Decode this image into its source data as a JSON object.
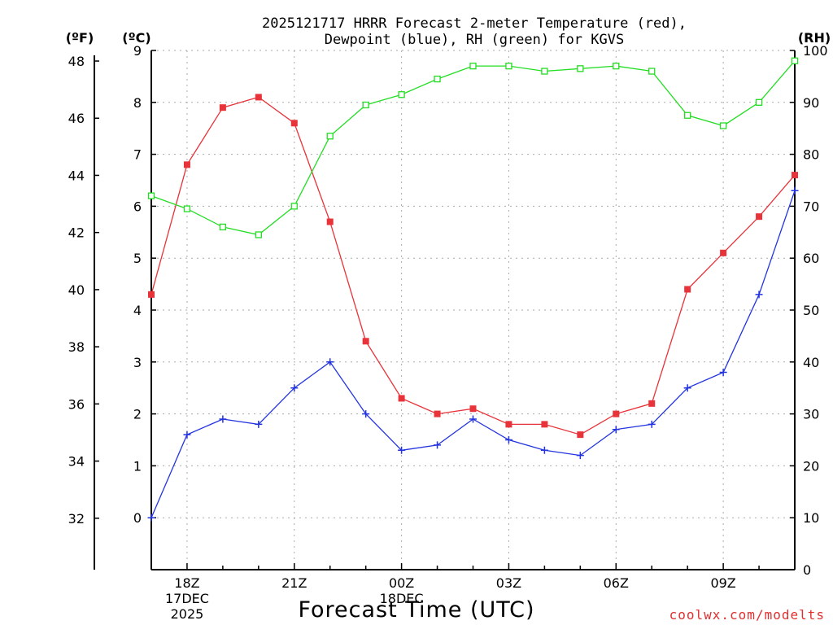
{
  "chart_data": {
    "type": "line",
    "title_lines": [
      "2025121717 HRRR Forecast 2-meter Temperature (red),",
      "Dewpoint (blue), RH (green) for KGVS"
    ],
    "xlabel": "Forecast Time (UTC)",
    "credit": "coolwx.com/modelts",
    "units": {
      "fahrenheit": "(ºF)",
      "celsius": "(ºC)",
      "rh": "(RH)"
    },
    "x_hours": [
      0,
      1,
      2,
      3,
      4,
      5,
      6,
      7,
      8,
      9,
      10,
      11,
      12,
      13,
      14,
      15,
      16,
      17,
      18
    ],
    "x_tick_hours": [
      1,
      4,
      7,
      10,
      13,
      16
    ],
    "x_tick_labels": [
      [
        "18Z",
        "17DEC",
        "2025"
      ],
      [
        "21Z"
      ],
      [
        "00Z",
        "18DEC"
      ],
      [
        "03Z"
      ],
      [
        "06Z"
      ],
      [
        "09Z"
      ]
    ],
    "y_celsius": {
      "ylim": [
        -1,
        9
      ],
      "ticks": [
        0,
        1,
        2,
        3,
        4,
        5,
        6,
        7,
        8,
        9
      ]
    },
    "y_fahrenheit": {
      "ylim": [
        30.2,
        48.2
      ],
      "ticks": [
        32,
        34,
        36,
        38,
        40,
        42,
        44,
        46,
        48
      ]
    },
    "y_rh": {
      "ylim": [
        0,
        100
      ],
      "ticks": [
        0,
        10,
        20,
        30,
        40,
        50,
        60,
        70,
        80,
        90,
        100
      ]
    },
    "series": [
      {
        "name": "Temperature",
        "axis": "celsius",
        "color": "#e8333a",
        "marker": "square",
        "values": [
          4.3,
          6.8,
          7.9,
          8.1,
          7.6,
          5.7,
          3.4,
          2.3,
          2.0,
          2.1,
          1.8,
          1.8,
          1.6,
          2.0,
          2.2,
          4.4,
          5.1,
          5.8,
          6.6
        ]
      },
      {
        "name": "Dewpoint",
        "axis": "celsius",
        "color": "#2233e0",
        "marker": "plus",
        "values": [
          0.0,
          1.6,
          1.9,
          1.8,
          2.5,
          3.0,
          2.0,
          1.3,
          1.4,
          1.9,
          1.5,
          1.3,
          1.2,
          1.7,
          1.8,
          2.5,
          2.8,
          4.3,
          6.3
        ]
      },
      {
        "name": "RH",
        "axis": "rh",
        "color": "#22dd22",
        "marker": "open-square",
        "values": [
          72,
          69.5,
          66,
          64.5,
          70,
          83.5,
          89.5,
          91.5,
          94.5,
          97,
          97,
          96,
          96.5,
          97,
          96,
          87.5,
          85.5,
          90,
          98
        ]
      }
    ]
  }
}
